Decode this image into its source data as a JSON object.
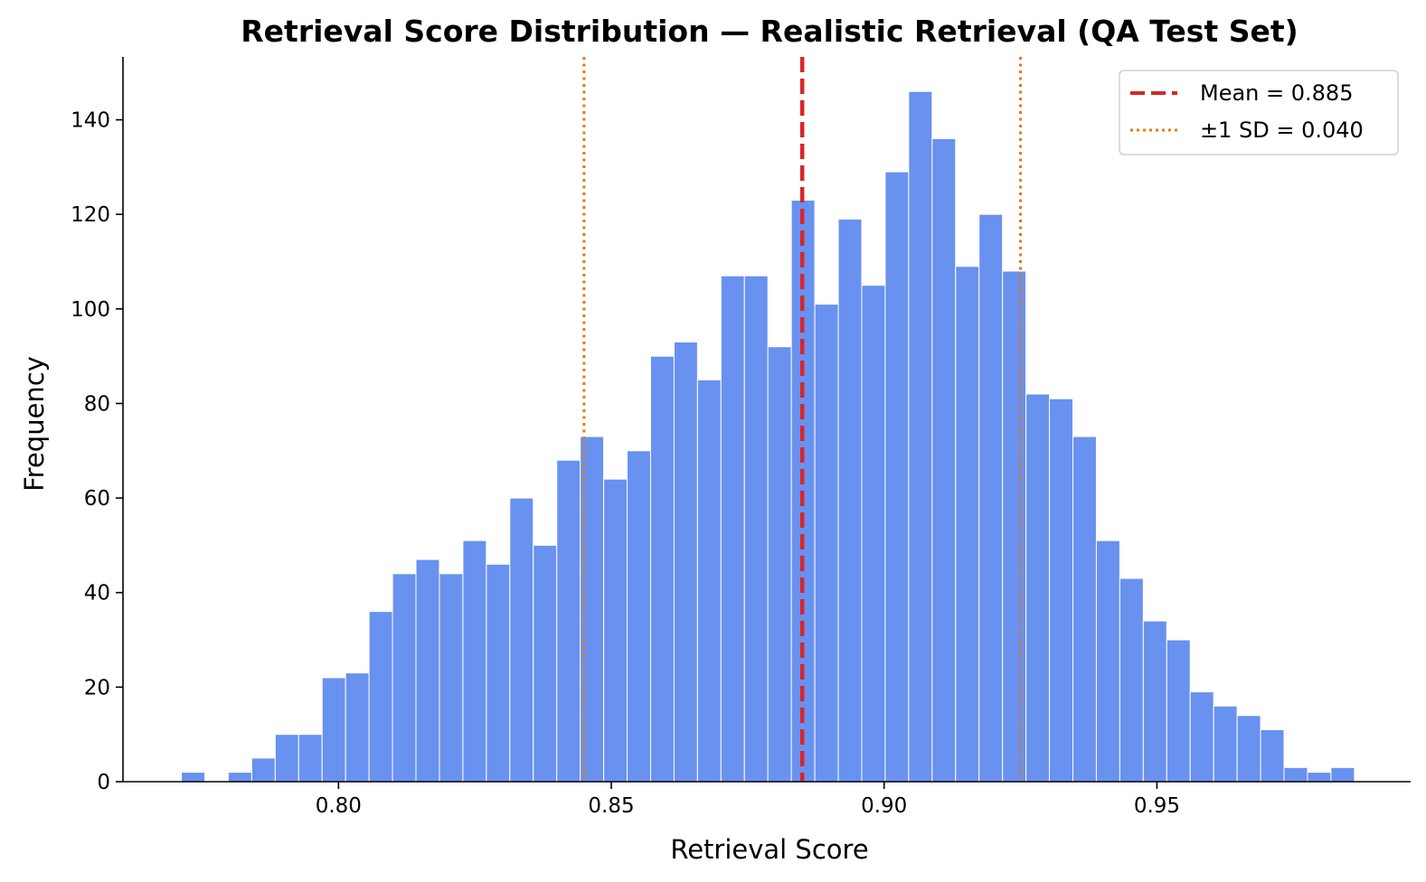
{
  "chart_data": {
    "type": "bar",
    "title": "Retrieval Score Distribution — Realistic Retrieval (QA Test Set)",
    "xlabel": "Retrieval Score",
    "ylabel": "Frequency",
    "xlim": [
      0.7605,
      0.9965
    ],
    "ylim": [
      0,
      153.3
    ],
    "xticks": [
      0.8,
      0.85,
      0.9,
      0.95
    ],
    "xtick_labels": [
      "0.80",
      "0.85",
      "0.90",
      "0.95"
    ],
    "yticks": [
      0,
      20,
      40,
      60,
      80,
      100,
      120,
      140
    ],
    "ytick_labels": [
      "0",
      "20",
      "40",
      "60",
      "80",
      "100",
      "120",
      "140"
    ],
    "bin_start": 0.7712,
    "bin_width": 0.0043,
    "values": [
      2,
      0,
      2,
      5,
      10,
      10,
      22,
      23,
      36,
      44,
      47,
      44,
      51,
      46,
      60,
      50,
      68,
      73,
      64,
      70,
      90,
      93,
      85,
      107,
      107,
      92,
      123,
      101,
      119,
      105,
      129,
      146,
      136,
      109,
      120,
      108,
      82,
      81,
      73,
      51,
      43,
      34,
      30,
      19,
      16,
      14,
      11,
      3,
      2,
      3
    ],
    "bar_color": "#6891f0",
    "mean_line": {
      "value": 0.885,
      "color": "#d62728",
      "label": "Mean = 0.885"
    },
    "sd_lines": {
      "values": [
        0.845,
        0.925
      ],
      "color": "#e07b12",
      "label": "±1 SD = 0.040"
    },
    "legend_position": "top-right",
    "grid": false
  }
}
